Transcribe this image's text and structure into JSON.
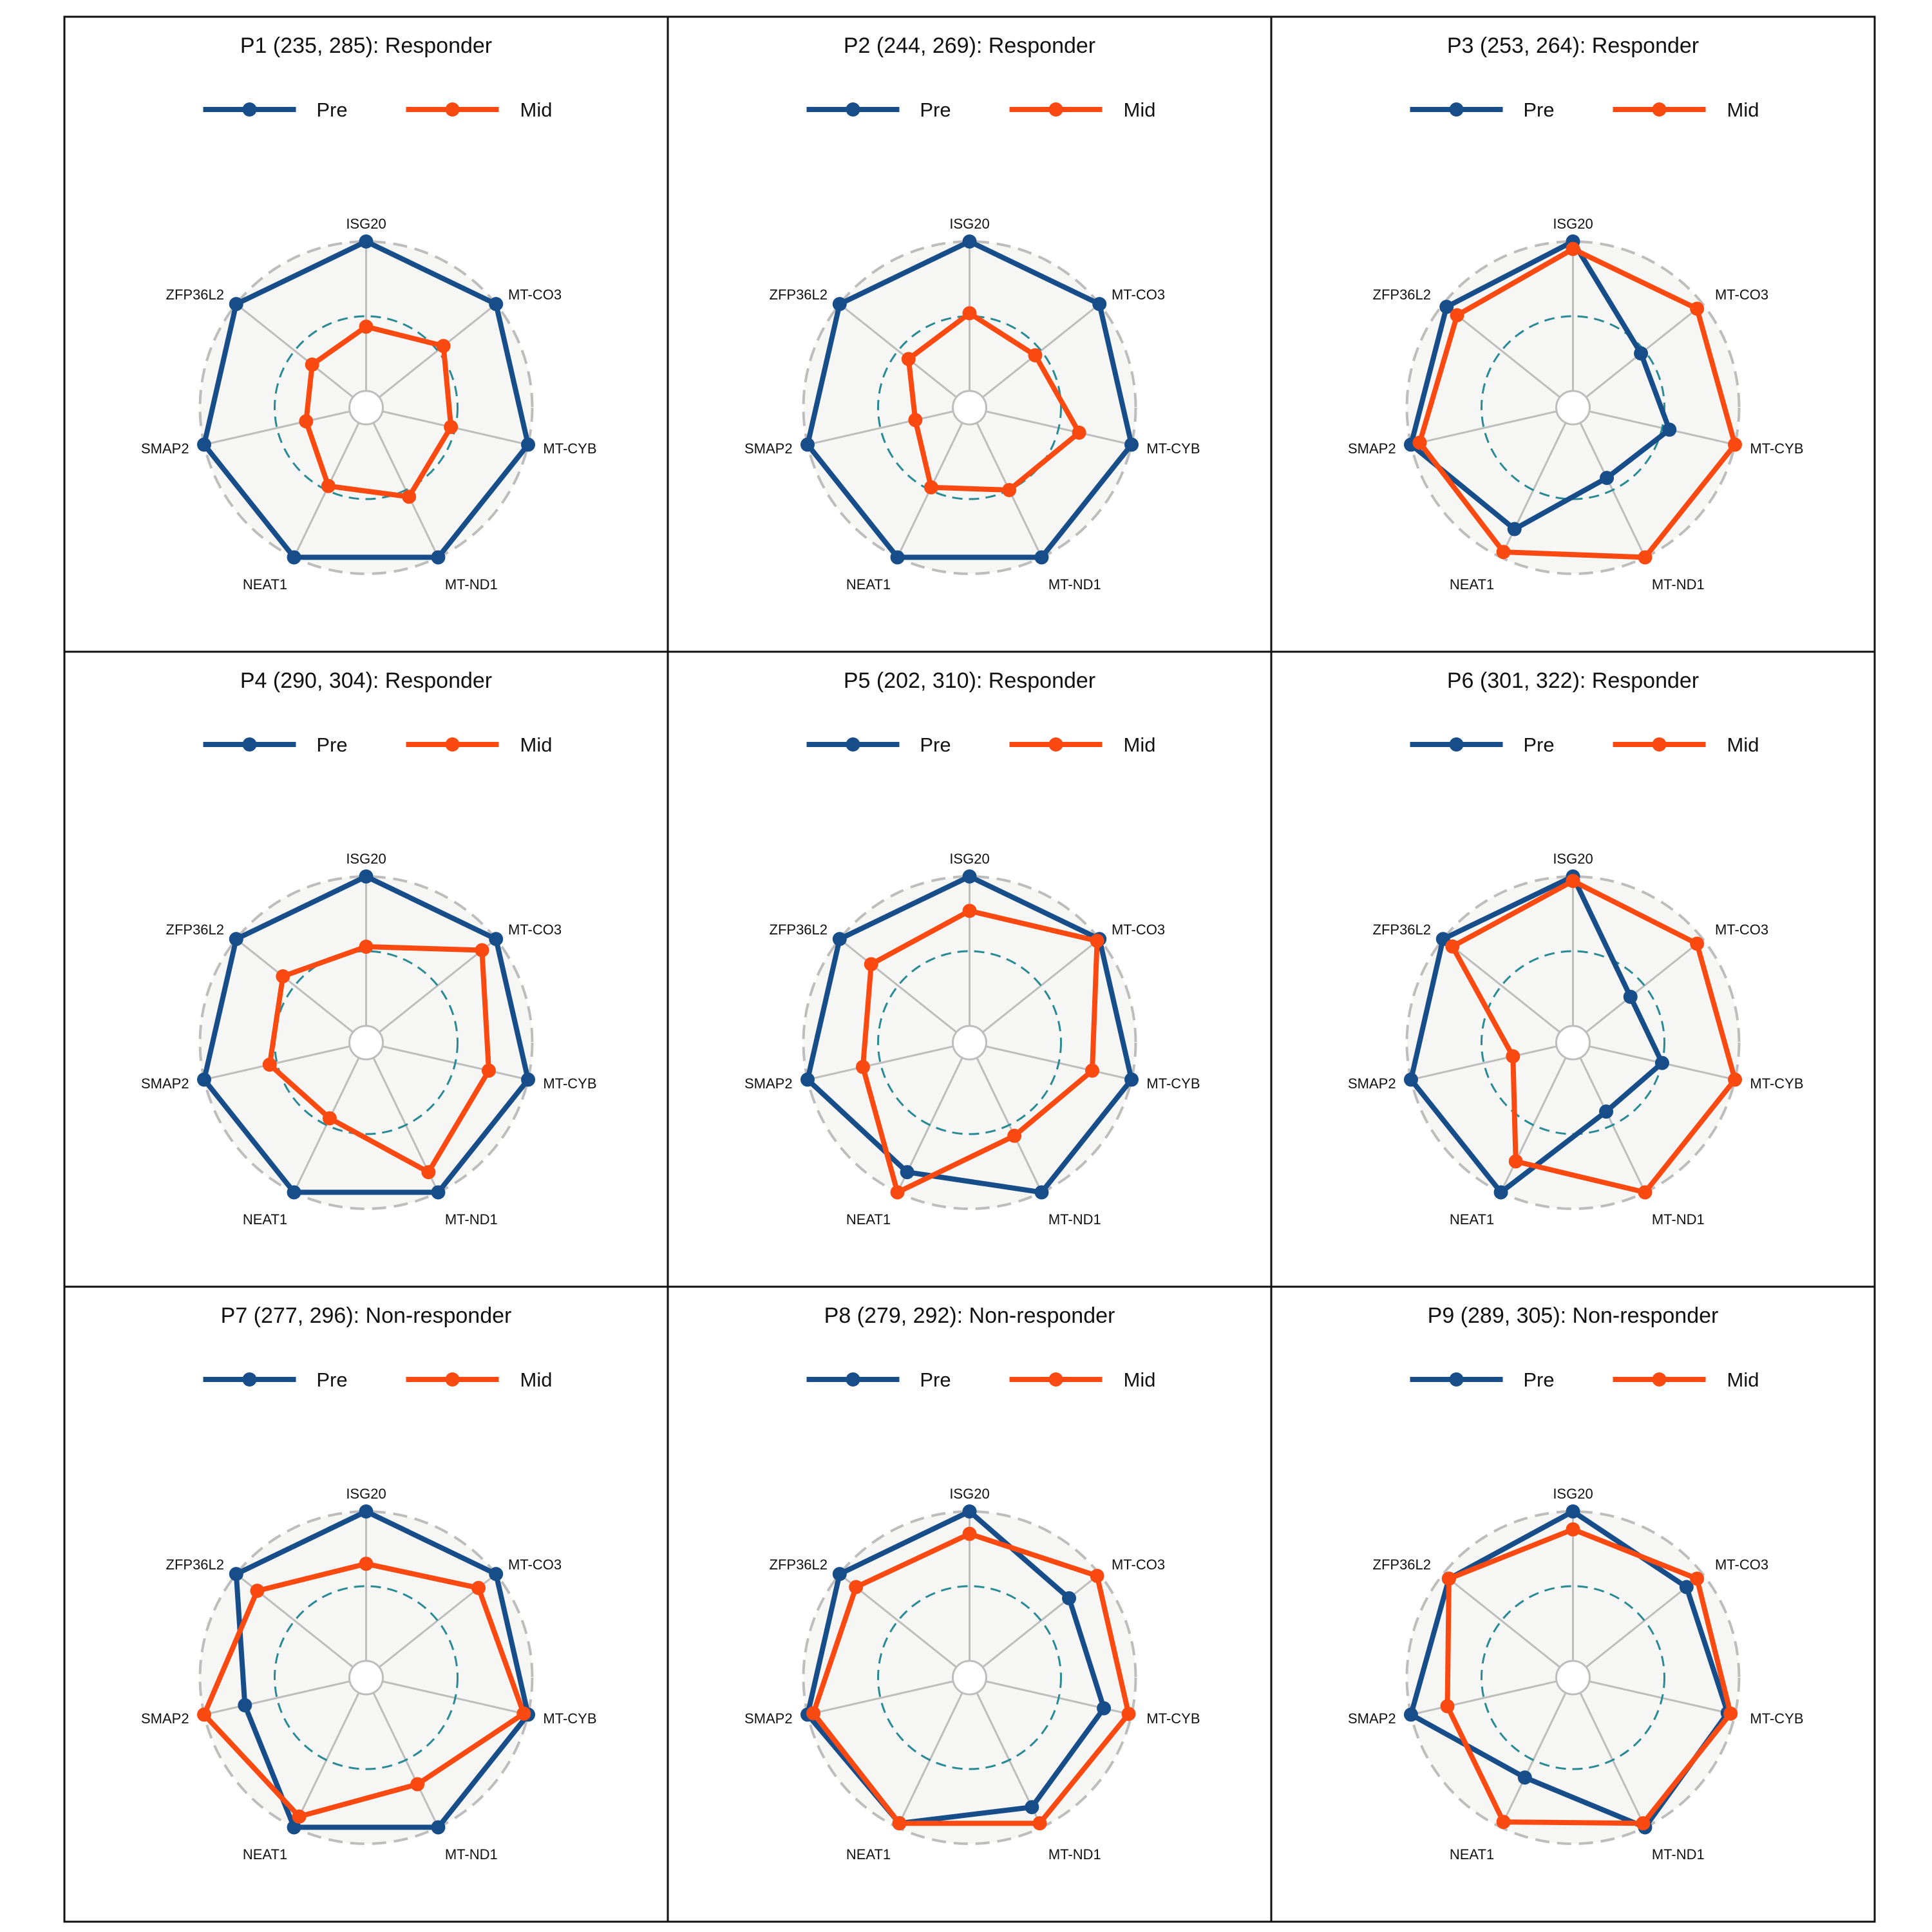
{
  "chart_data": {
    "type": "radar",
    "axes": [
      "ISG20",
      "MT-CO3",
      "MT-CYB",
      "MT-ND1",
      "NEAT1",
      "SMAP2",
      "ZFP36L2"
    ],
    "rlim": [
      0,
      1
    ],
    "reference_ring": 0.5,
    "legend": {
      "placement": "top-center",
      "entries": [
        "Pre",
        "Mid"
      ]
    },
    "colors": {
      "Pre": "#174e8a",
      "Mid": "#fa4a12",
      "reference_ring": "#2a8a94",
      "outer_ring": "#bdbdbd",
      "spokes": "#bdbdbd",
      "panel_fill": "#f6f6f4"
    },
    "panels": [
      {
        "title": "P1 (235, 285): Responder",
        "series": [
          {
            "name": "Pre",
            "values": [
              1.0,
              1.0,
              1.0,
              1.0,
              1.0,
              1.0,
              1.0
            ]
          },
          {
            "name": "Mid",
            "values": [
              0.43,
              0.55,
              0.47,
              0.55,
              0.47,
              0.3,
              0.35
            ]
          }
        ]
      },
      {
        "title": "P2 (244, 269): Responder",
        "series": [
          {
            "name": "Pre",
            "values": [
              1.0,
              1.0,
              1.0,
              1.0,
              1.0,
              1.0,
              1.0
            ]
          },
          {
            "name": "Mid",
            "values": [
              0.52,
              0.45,
              0.64,
              0.5,
              0.48,
              0.26,
              0.41
            ]
          }
        ]
      },
      {
        "title": "P3 (253, 264): Responder",
        "series": [
          {
            "name": "Pre",
            "values": [
              1.0,
              0.47,
              0.55,
              0.41,
              0.79,
              1.0,
              0.97
            ]
          },
          {
            "name": "Mid",
            "values": [
              0.95,
              0.95,
              1.0,
              1.0,
              0.96,
              0.94,
              0.88
            ]
          }
        ]
      },
      {
        "title": "P4 (290, 304): Responder",
        "series": [
          {
            "name": "Pre",
            "values": [
              1.0,
              1.0,
              1.0,
              1.0,
              1.0,
              1.0,
              1.0
            ]
          },
          {
            "name": "Mid",
            "values": [
              0.53,
              0.88,
              0.73,
              0.85,
              0.45,
              0.55,
              0.6
            ]
          }
        ]
      },
      {
        "title": "P5 (202, 310): Responder",
        "series": [
          {
            "name": "Pre",
            "values": [
              1.0,
              1.0,
              1.0,
              1.0,
              0.85,
              1.0,
              1.0
            ]
          },
          {
            "name": "Mid",
            "values": [
              0.77,
              0.98,
              0.73,
              0.58,
              1.0,
              0.62,
              0.73
            ]
          }
        ]
      },
      {
        "title": "P6 (301, 322): Responder",
        "series": [
          {
            "name": "Pre",
            "values": [
              1.0,
              0.38,
              0.5,
              0.4,
              1.0,
              1.0,
              1.0
            ]
          },
          {
            "name": "Mid",
            "values": [
              0.97,
              0.95,
              1.0,
              1.0,
              0.77,
              0.3,
              0.92
            ]
          }
        ]
      },
      {
        "title": "P7 (277, 296): Non-responder",
        "series": [
          {
            "name": "Pre",
            "values": [
              1.0,
              1.0,
              1.0,
              1.0,
              1.0,
              0.72,
              1.0
            ]
          },
          {
            "name": "Mid",
            "values": [
              0.65,
              0.85,
              0.97,
              0.68,
              0.92,
              1.0,
              0.82
            ]
          }
        ]
      },
      {
        "title": "P8 (279, 292): Non-responder",
        "series": [
          {
            "name": "Pre",
            "values": [
              1.0,
              0.74,
              0.81,
              0.85,
              0.97,
              1.0,
              1.0
            ]
          },
          {
            "name": "Mid",
            "values": [
              0.85,
              0.98,
              0.98,
              0.97,
              0.97,
              0.96,
              0.86
            ]
          }
        ]
      },
      {
        "title": "P9 (289, 305): Non-responder",
        "series": [
          {
            "name": "Pre",
            "values": [
              1.0,
              0.86,
              0.95,
              1.0,
              0.63,
              1.0,
              0.95
            ]
          },
          {
            "name": "Mid",
            "values": [
              0.88,
              0.95,
              0.97,
              0.97,
              0.96,
              0.75,
              0.95
            ]
          }
        ]
      }
    ]
  }
}
